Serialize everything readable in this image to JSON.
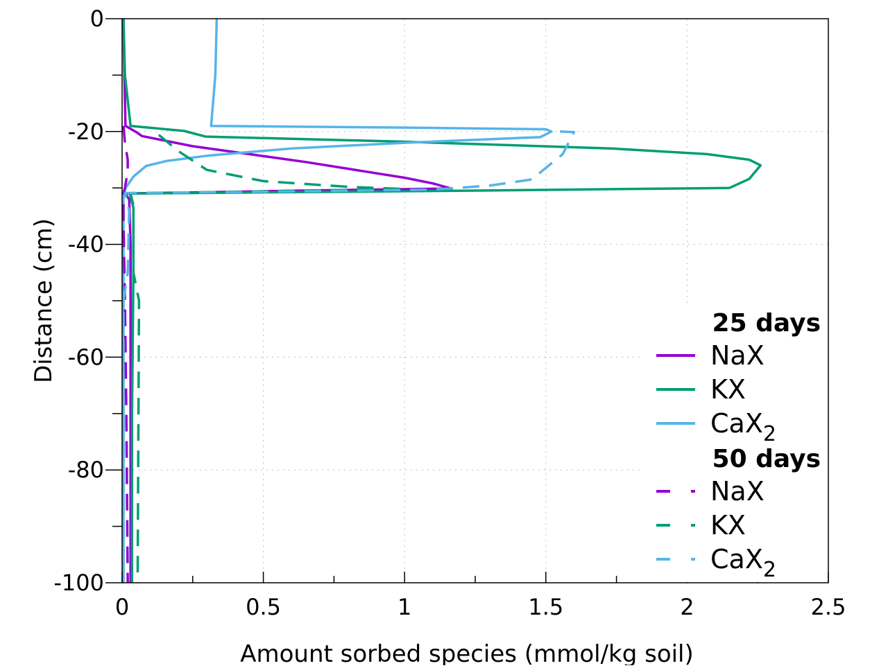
{
  "chart_data": {
    "type": "line",
    "xlabel": "Amount sorbed species (mmol/kg soil)",
    "ylabel": "Distance (cm)",
    "xlim": [
      0,
      2.5
    ],
    "ylim": [
      -100,
      0
    ],
    "xticks": [
      "0",
      "0.5",
      "1",
      "1.5",
      "2",
      "2.5"
    ],
    "xtick_values": [
      0,
      0.5,
      1,
      1.5,
      2,
      2.5
    ],
    "yticks": [
      "0",
      "-20",
      "-40",
      "-60",
      "-80",
      "-100"
    ],
    "ytick_values": [
      0,
      -20,
      -40,
      -60,
      -80,
      -100
    ],
    "grid": true,
    "legend_placement": "bottom-right",
    "legend_groups": [
      "25 days",
      "50 days"
    ],
    "colors": {
      "NaX": "#9400D3",
      "KX": "#009E73",
      "CaX2": "#56B4E9"
    },
    "series": [
      {
        "name": "NaX",
        "group": "25 days",
        "species": "NaX",
        "dashed": false,
        "points": [
          [
            0.005,
            0
          ],
          [
            0.008,
            -10
          ],
          [
            0.012,
            -19
          ],
          [
            0.05,
            -20.1
          ],
          [
            0.07,
            -20.8
          ],
          [
            0.25,
            -22.6
          ],
          [
            0.45,
            -24
          ],
          [
            0.65,
            -25.4
          ],
          [
            0.85,
            -27
          ],
          [
            1.0,
            -28.2
          ],
          [
            1.1,
            -29.2
          ],
          [
            1.165,
            -30.1
          ],
          [
            0.6,
            -30.5
          ],
          [
            0.01,
            -31
          ],
          [
            0.025,
            -32
          ],
          [
            0.03,
            -40
          ],
          [
            0.03,
            -70
          ],
          [
            0.03,
            -100
          ]
        ]
      },
      {
        "name": "KX",
        "group": "25 days",
        "species": "KX",
        "dashed": false,
        "points": [
          [
            0.005,
            0
          ],
          [
            0.01,
            -10
          ],
          [
            0.03,
            -19
          ],
          [
            0.22,
            -19.9
          ],
          [
            0.295,
            -20.9
          ],
          [
            1.0,
            -21.8
          ],
          [
            1.73,
            -23
          ],
          [
            2.07,
            -24
          ],
          [
            2.22,
            -25
          ],
          [
            2.26,
            -26
          ],
          [
            2.22,
            -28.4
          ],
          [
            2.15,
            -30
          ],
          [
            1.2,
            -30.5
          ],
          [
            0.027,
            -31
          ],
          [
            0.04,
            -33.5
          ],
          [
            0.04,
            -45
          ],
          [
            0.035,
            -70
          ],
          [
            0.035,
            -100
          ]
        ]
      },
      {
        "name": "CaX2",
        "group": "25 days",
        "species": "CaX2",
        "dashed": false,
        "points": [
          [
            0.335,
            0
          ],
          [
            0.33,
            -10
          ],
          [
            0.315,
            -19
          ],
          [
            1.0,
            -19.3
          ],
          [
            1.5,
            -19.6
          ],
          [
            1.52,
            -20
          ],
          [
            1.48,
            -21
          ],
          [
            1.0,
            -22
          ],
          [
            0.6,
            -23
          ],
          [
            0.3,
            -24.3
          ],
          [
            0.16,
            -25.2
          ],
          [
            0.085,
            -26.1
          ],
          [
            0.04,
            -28
          ],
          [
            0.015,
            -29.8
          ],
          [
            0.005,
            -31
          ],
          [
            0.005,
            -60
          ],
          [
            0.005,
            -100
          ]
        ]
      },
      {
        "name": "NaX",
        "group": "50 days",
        "species": "NaX",
        "dashed": true,
        "points": [
          [
            0.005,
            -19
          ],
          [
            0.01,
            -22
          ],
          [
            0.02,
            -25
          ],
          [
            0.02,
            -27
          ],
          [
            0.01,
            -30
          ],
          [
            0.005,
            -31
          ],
          [
            0.005,
            -36
          ],
          [
            0.01,
            -50
          ],
          [
            0.015,
            -70
          ],
          [
            0.02,
            -100
          ]
        ]
      },
      {
        "name": "KX",
        "group": "50 days",
        "species": "KX",
        "dashed": true,
        "points": [
          [
            0.13,
            -20.6
          ],
          [
            0.2,
            -23.5
          ],
          [
            0.3,
            -26.8
          ],
          [
            0.5,
            -28.8
          ],
          [
            0.8,
            -29.8
          ],
          [
            1.0,
            -30.2
          ],
          [
            0.5,
            -30.6
          ],
          [
            0.03,
            -31
          ],
          [
            0.04,
            -33
          ],
          [
            0.04,
            -45
          ],
          [
            0.06,
            -50
          ],
          [
            0.058,
            -70
          ],
          [
            0.055,
            -100
          ]
        ]
      },
      {
        "name": "CaX2",
        "group": "50 days",
        "species": "CaX2",
        "dashed": true,
        "points": [
          [
            1.55,
            -20
          ],
          [
            1.6,
            -20.1
          ],
          [
            1.56,
            -24
          ],
          [
            1.45,
            -28.5
          ],
          [
            1.3,
            -29.6
          ],
          [
            1.1,
            -30.3
          ],
          [
            0.5,
            -30.7
          ],
          [
            0.01,
            -30.9
          ],
          [
            0.025,
            -34
          ],
          [
            0.02,
            -45
          ],
          [
            0.005,
            -50
          ],
          [
            0.005,
            -100
          ]
        ]
      }
    ]
  },
  "legend": {
    "group1": "25 days",
    "group2": "50 days",
    "items": [
      {
        "label": "NaX",
        "sub": ""
      },
      {
        "label": "KX",
        "sub": ""
      },
      {
        "label": "CaX",
        "sub": "2"
      },
      {
        "label": "NaX",
        "sub": ""
      },
      {
        "label": "KX",
        "sub": ""
      },
      {
        "label": "CaX",
        "sub": "2"
      }
    ]
  }
}
